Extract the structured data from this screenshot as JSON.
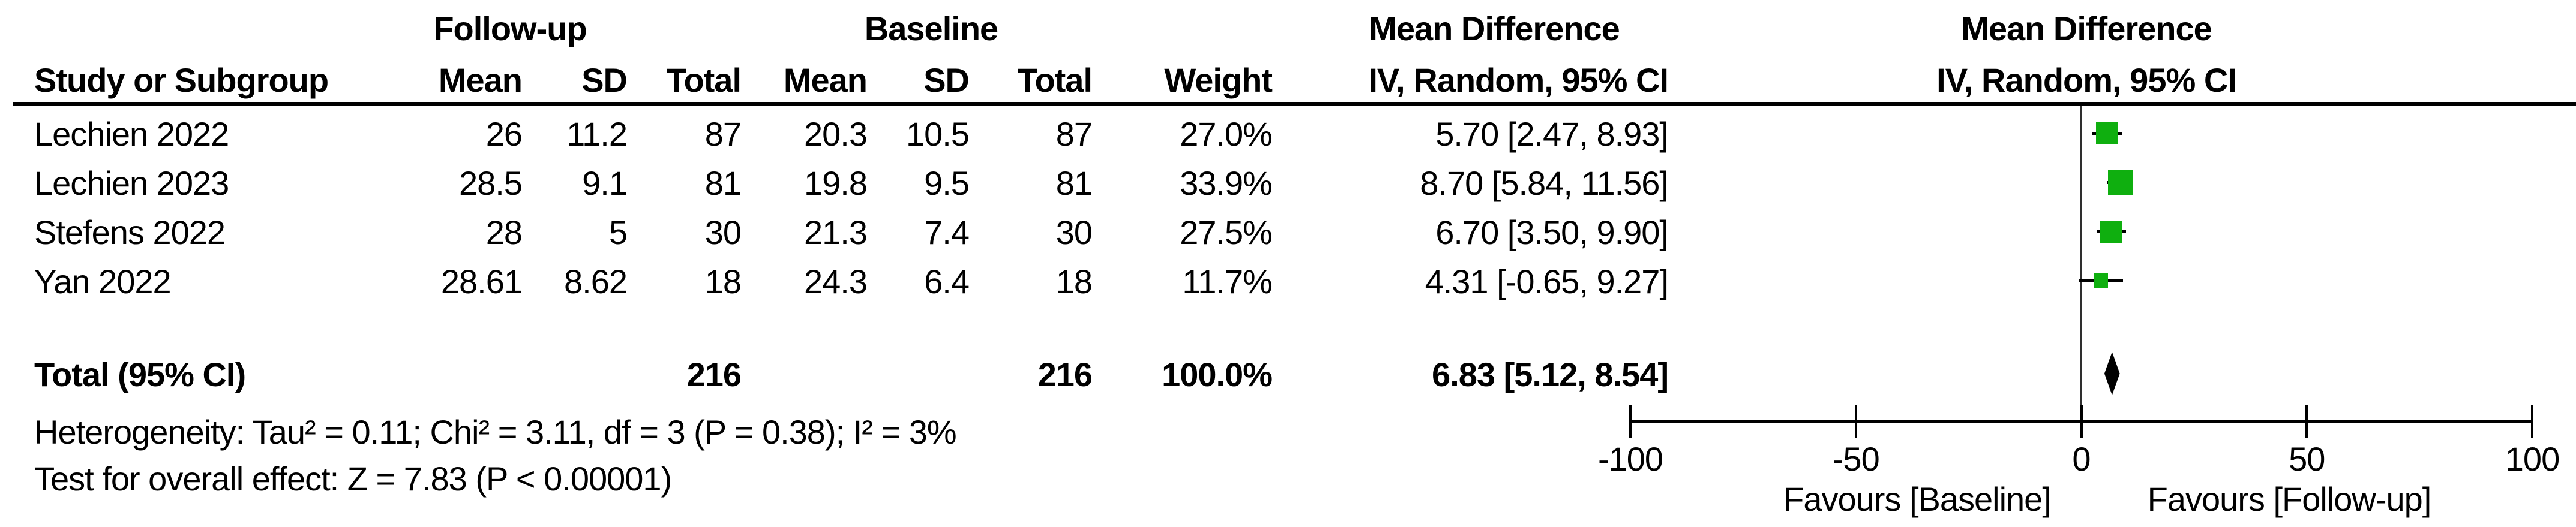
{
  "colors": {
    "square_green": "#0FAF0F",
    "diamond_black": "#000000",
    "axis_black": "#000000",
    "zero_line": "#2E2E2E",
    "text": "#000000"
  },
  "table": {
    "group_headers": {
      "followup": "Follow-up",
      "baseline": "Baseline",
      "mean_difference": "Mean Difference"
    },
    "column_headers": {
      "study": "Study or Subgroup",
      "fu_mean": "Mean",
      "fu_sd": "SD",
      "fu_total": "Total",
      "bl_mean": "Mean",
      "bl_sd": "SD",
      "bl_total": "Total",
      "weight": "Weight",
      "ci": "IV, Random, 95% CI"
    },
    "plot_header": {
      "line1": "Mean Difference",
      "line2": "IV, Random, 95% CI"
    },
    "rows": [
      {
        "name": "Lechien 2022",
        "fu_mean": "26",
        "fu_sd": "11.2",
        "fu_total": "87",
        "bl_mean": "20.3",
        "bl_sd": "10.5",
        "bl_total": "87",
        "weight": "27.0%",
        "ci": "5.70 [2.47, 8.93]"
      },
      {
        "name": "Lechien 2023",
        "fu_mean": "28.5",
        "fu_sd": "9.1",
        "fu_total": "81",
        "bl_mean": "19.8",
        "bl_sd": "9.5",
        "bl_total": "81",
        "weight": "33.9%",
        "ci": "8.70 [5.84, 11.56]"
      },
      {
        "name": "Stefens 2022",
        "fu_mean": "28",
        "fu_sd": "5",
        "fu_total": "30",
        "bl_mean": "21.3",
        "bl_sd": "7.4",
        "bl_total": "30",
        "weight": "27.5%",
        "ci": "6.70 [3.50, 9.90]"
      },
      {
        "name": "Yan 2022",
        "fu_mean": "28.61",
        "fu_sd": "8.62",
        "fu_total": "18",
        "bl_mean": "24.3",
        "bl_sd": "6.4",
        "bl_total": "18",
        "weight": "11.7%",
        "ci": "4.31 [-0.65, 9.27]"
      }
    ],
    "total_row": {
      "label": "Total (95% CI)",
      "fu_total": "216",
      "bl_total": "216",
      "weight": "100.0%",
      "ci": "6.83 [5.12, 8.54]"
    },
    "footnotes": {
      "heterogeneity": "Heterogeneity: Tau² = 0.11; Chi² = 3.11, df = 3 (P = 0.38); I² = 3%",
      "overall_effect": "Test for overall effect: Z = 7.83 (P < 0.00001)"
    }
  },
  "axis": {
    "favours_left": "Favours [Baseline]",
    "favours_right": "Favours [Follow-up]"
  },
  "chart_data": {
    "type": "forest",
    "title": "Mean Difference",
    "effect_measure": "Mean Difference",
    "model": "IV, Random, 95% CI",
    "xlim": [
      -100,
      100
    ],
    "ticks": [
      -100,
      -50,
      0,
      50,
      100
    ],
    "grid": false,
    "studies": [
      {
        "name": "Lechien 2022",
        "md": 5.7,
        "ci_low": 2.47,
        "ci_high": 8.93,
        "weight_pct": 27.0
      },
      {
        "name": "Lechien 2023",
        "md": 8.7,
        "ci_low": 5.84,
        "ci_high": 11.56,
        "weight_pct": 33.9
      },
      {
        "name": "Stefens 2022",
        "md": 6.7,
        "ci_low": 3.5,
        "ci_high": 9.9,
        "weight_pct": 27.5
      },
      {
        "name": "Yan 2022",
        "md": 4.31,
        "ci_low": -0.65,
        "ci_high": 9.27,
        "weight_pct": 11.7
      }
    ],
    "total": {
      "label": "Total (95% CI)",
      "md": 6.83,
      "ci_low": 5.12,
      "ci_high": 8.54,
      "weight_pct": 100.0,
      "followup_n": 216,
      "baseline_n": 216
    },
    "heterogeneity": {
      "tau2": 0.11,
      "chi2": 3.11,
      "df": 3,
      "p": 0.38,
      "i2_pct": 3
    },
    "overall_effect": {
      "z": 7.83,
      "p": "< 0.00001"
    },
    "favours_left": "Favours [Baseline]",
    "favours_right": "Favours [Follow-up]"
  }
}
